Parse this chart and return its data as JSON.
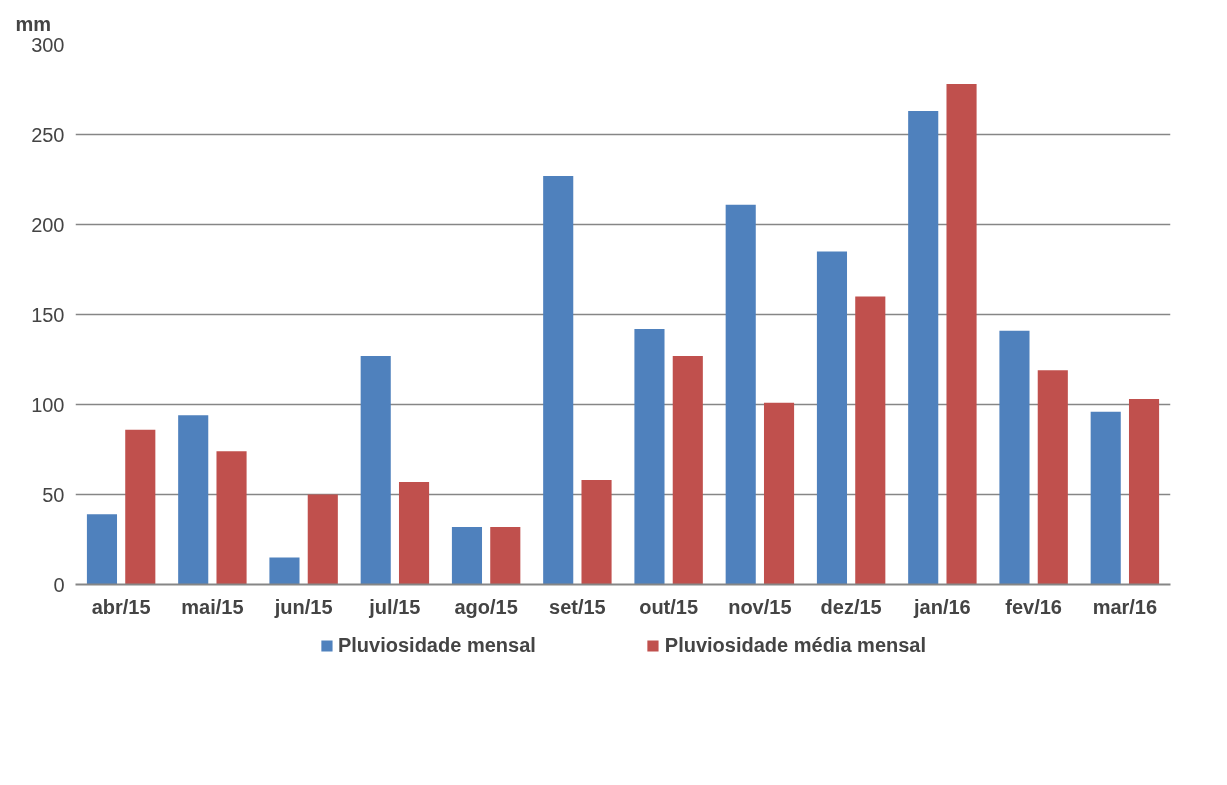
{
  "chart_data": {
    "type": "bar",
    "ylabel": "mm",
    "categories": [
      "abr/15",
      "mai/15",
      "jun/15",
      "jul/15",
      "ago/15",
      "set/15",
      "out/15",
      "nov/15",
      "dez/15",
      "jan/16",
      "fev/16",
      "mar/16"
    ],
    "series": [
      {
        "name": "Pluviosidade mensal",
        "color": "#4f81bd",
        "values": [
          39,
          94,
          15,
          127,
          32,
          227,
          142,
          211,
          185,
          263,
          141,
          96
        ]
      },
      {
        "name": "Pluviosidade média mensal",
        "color": "#c0504d",
        "values": [
          86,
          74,
          50,
          57,
          32,
          58,
          127,
          101,
          160,
          278,
          119,
          103
        ]
      }
    ],
    "ylim": [
      0,
      300
    ],
    "yticks": [
      0,
      50,
      100,
      150,
      200,
      250,
      300
    ],
    "grid": "y",
    "legend": "bottom"
  }
}
